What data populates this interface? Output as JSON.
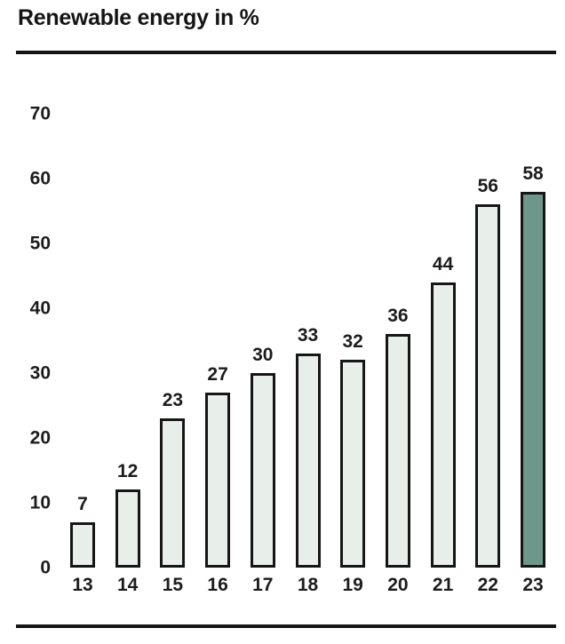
{
  "header": {
    "title": "Renewable energy in %"
  },
  "chart_data": {
    "type": "bar",
    "title": "Renewable energy in %",
    "categories": [
      "13",
      "14",
      "15",
      "16",
      "17",
      "18",
      "19",
      "20",
      "21",
      "22",
      "23"
    ],
    "values": [
      7,
      12,
      23,
      27,
      30,
      33,
      32,
      36,
      44,
      56,
      58
    ],
    "xlabel": "",
    "ylabel": "",
    "ylim": [
      0,
      70
    ],
    "yticks": [
      0,
      10,
      20,
      30,
      40,
      50,
      60,
      70
    ],
    "grid": false,
    "legend": false,
    "data_labels": true,
    "highlight_index": 10,
    "colors": {
      "bar_fill": "#e8eeea",
      "bar_border": "#161616",
      "highlight_fill": "#6f968a",
      "label_text": "#1c1c1c",
      "rule": "#151515",
      "background": "#ffffff"
    }
  }
}
